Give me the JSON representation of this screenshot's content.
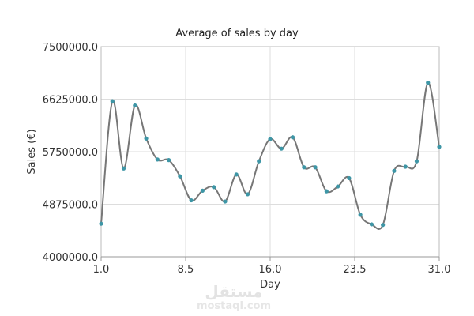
{
  "chart_data": {
    "type": "line",
    "title": "Average of sales by day",
    "xlabel": "Day",
    "ylabel": "Sales (€)",
    "xlim": [
      1.0,
      31.0
    ],
    "ylim": [
      4000000.0,
      7500000.0
    ],
    "x_ticks": [
      "1.0",
      "8.5",
      "16.0",
      "23.5",
      "31.0"
    ],
    "y_ticks": [
      "4000000.0",
      "4875000.0",
      "5750000.0",
      "6625000.0",
      "7500000.0"
    ],
    "grid": true,
    "smooth": true,
    "line_color": "#777777",
    "marker_color": "#3e96a6",
    "series": [
      {
        "x": [
          1,
          2,
          3,
          4,
          5,
          6,
          7,
          8,
          9,
          10,
          11,
          12,
          13,
          14,
          15,
          16,
          17,
          18,
          19,
          20,
          21,
          22,
          23,
          24,
          25,
          26,
          27,
          28,
          29,
          30,
          31
        ],
        "values": [
          4550000,
          6590000,
          5470000,
          6520000,
          5970000,
          5620000,
          5610000,
          5340000,
          4940000,
          5100000,
          5160000,
          4920000,
          5370000,
          5040000,
          5590000,
          5960000,
          5800000,
          5990000,
          5490000,
          5490000,
          5090000,
          5170000,
          5310000,
          4700000,
          4540000,
          4530000,
          5430000,
          5500000,
          5590000,
          6900000,
          5830000
        ]
      }
    ]
  },
  "watermark": {
    "arabic": "مستقل",
    "latin": "mostaql.com"
  }
}
